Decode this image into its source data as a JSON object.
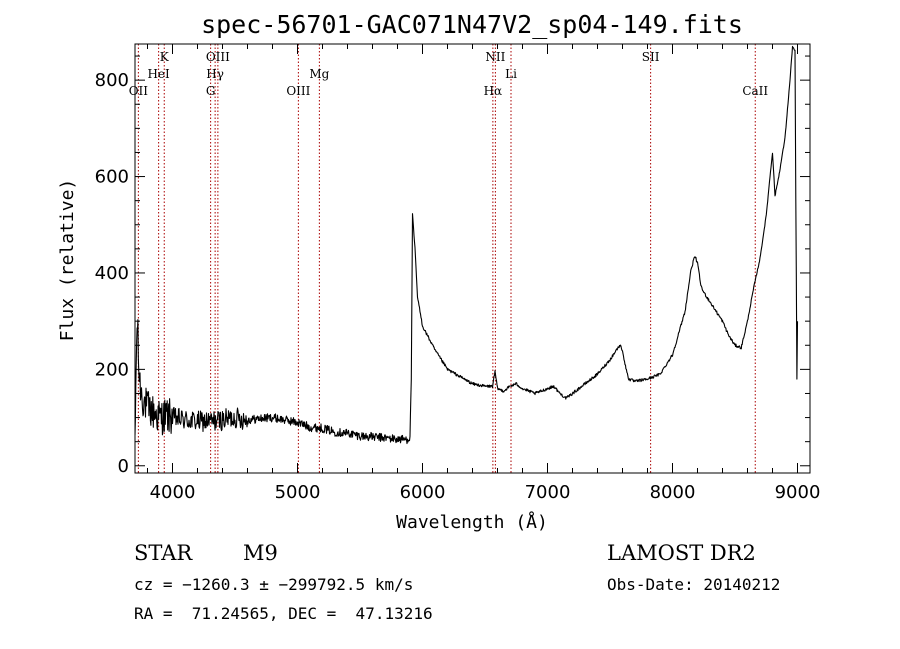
{
  "chart_data": {
    "type": "line",
    "title": "spec-56701-GAC071N47V2_sp04-149.fits",
    "xlabel": "Wavelength (Å)",
    "ylabel": "Flux (relative)",
    "xlim": [
      3700,
      9100
    ],
    "ylim": [
      -15,
      875
    ],
    "x_ticks": [
      4000,
      5000,
      6000,
      7000,
      8000,
      9000
    ],
    "y_ticks": [
      0,
      200,
      400,
      600,
      800
    ],
    "grid": false,
    "series": [
      {
        "x": [
          3700,
          3710,
          3720,
          3730,
          3740,
          3760,
          3780,
          3800,
          3850,
          3900,
          3950,
          4000,
          4100,
          4200,
          4300,
          4400,
          4500,
          4600,
          4700,
          4800,
          4900,
          5000,
          5100,
          5200,
          5300,
          5400,
          5500,
          5600,
          5700,
          5800,
          5880,
          5900,
          5910,
          5920,
          5940,
          5960,
          6000,
          6050,
          6100,
          6150,
          6200,
          6300,
          6400,
          6500,
          6560,
          6580,
          6600,
          6650,
          6700,
          6750,
          6800,
          6900,
          7000,
          7050,
          7100,
          7150,
          7200,
          7300,
          7400,
          7500,
          7550,
          7580,
          7600,
          7620,
          7650,
          7700,
          7800,
          7900,
          8000,
          8100,
          8150,
          8180,
          8200,
          8230,
          8250,
          8300,
          8350,
          8400,
          8450,
          8500,
          8550,
          8600,
          8650,
          8700,
          8750,
          8780,
          8800,
          8820,
          8850,
          8900,
          8940,
          8960,
          8980,
          8990,
          8995,
          9000
        ],
        "values": [
          30,
          230,
          300,
          200,
          170,
          140,
          130,
          120,
          110,
          100,
          105,
          100,
          95,
          92,
          92,
          95,
          100,
          95,
          98,
          100,
          95,
          90,
          80,
          78,
          70,
          68,
          62,
          60,
          58,
          55,
          55,
          60,
          180,
          520,
          450,
          350,
          290,
          265,
          240,
          220,
          200,
          185,
          170,
          165,
          165,
          195,
          160,
          155,
          165,
          170,
          160,
          150,
          160,
          165,
          150,
          140,
          150,
          170,
          190,
          220,
          240,
          250,
          240,
          210,
          180,
          175,
          180,
          190,
          230,
          320,
          410,
          435,
          420,
          370,
          360,
          340,
          320,
          300,
          270,
          250,
          245,
          300,
          370,
          430,
          520,
          600,
          650,
          560,
          600,
          680,
          800,
          870,
          860,
          400,
          180,
          300
        ]
      }
    ],
    "line_markers": [
      {
        "name": "OII",
        "x": 3727
      },
      {
        "name": "K",
        "x": 3934
      },
      {
        "name": "HeI",
        "x": 3889
      },
      {
        "name": "OIII",
        "x": 4363
      },
      {
        "name": "Hγ",
        "x": 4341
      },
      {
        "name": "G",
        "x": 4305
      },
      {
        "name": "OIII",
        "x": 5007
      },
      {
        "name": "Mg",
        "x": 5175
      },
      {
        "name": "NII",
        "x": 6583
      },
      {
        "name": "Hα",
        "x": 6563
      },
      {
        "name": "Li",
        "x": 6708
      },
      {
        "name": "SII",
        "x": 7825
      },
      {
        "name": "CaII",
        "x": 8662
      }
    ],
    "marker_color": "#aa0000",
    "line_color": "#000000"
  },
  "info": {
    "class": "STAR",
    "subclass": "M9",
    "survey": "LAMOST DR2",
    "cz": "cz = −1260.3 ± −299792.5 km/s",
    "obs_date": "Obs-Date: 20140212",
    "radec": "RA =  71.24565, DEC =  47.13216"
  }
}
